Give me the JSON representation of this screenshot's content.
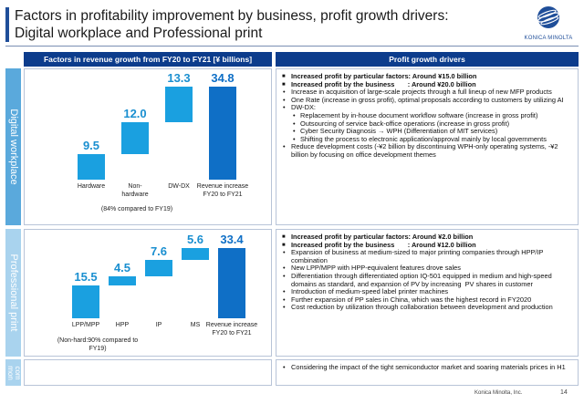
{
  "title": "Factors in profitability improvement by business, profit growth drivers:",
  "title2": "Digital workplace and Professional print",
  "logo_text": "KONICA MINOLTA",
  "headers": {
    "left": "Factors in revenue growth from FY20 to FY21 [¥ billions]",
    "right": "Profit growth drivers"
  },
  "side_labels": {
    "dw": "Digital workplace",
    "pp": "Professional print",
    "cm": "com mon"
  },
  "colors": {
    "bar": "#1aa0e0",
    "total_bar": "#0f6fc6",
    "header": "#0c3c8c"
  },
  "chart_data": [
    {
      "type": "bar",
      "categories": [
        "Hardware",
        "Non-hardware",
        "DW-DX",
        "Revenue increase FY20 to FY21"
      ],
      "category_labels": [
        "Hardware",
        "Non-\nhardware",
        "DW-DX",
        "Revenue increase\nFY20 to FY21"
      ],
      "values": [
        9.5,
        12.0,
        13.3,
        34.8
      ],
      "value_labels": [
        "9.5",
        "12.0",
        "13.3",
        "34.8"
      ],
      "note": "(84% compared to FY19)"
    },
    {
      "type": "bar",
      "categories": [
        "LPP/MPP",
        "HPP",
        "IP",
        "MS",
        "Revenue increase FY20 to FY21"
      ],
      "category_labels": [
        "LPP/MPP",
        "HPP",
        "IP",
        "MS",
        "Revenue increase\nFY20 to FY21"
      ],
      "values": [
        15.5,
        4.5,
        7.6,
        5.6,
        33.4
      ],
      "value_labels": [
        "15.5",
        "4.5",
        "7.6",
        "5.6",
        "33.4"
      ],
      "note": "(Non-hard:90% compared to FY19)"
    }
  ],
  "dw_drivers": [
    {
      "kind": "sq",
      "text": "Increased profit by particular factors: Around ¥15.0 billion"
    },
    {
      "kind": "sq",
      "text": "Increased profit by the business       : Around ¥20.0 billion"
    },
    {
      "kind": "dot",
      "text": "Increase in acquisition of large-scale projects through a full lineup of new MFP products"
    },
    {
      "kind": "dot",
      "text": "One Rate (increase in gross profit), optimal proposals according to customers by utilizing AI"
    },
    {
      "kind": "dot",
      "text": "DW-DX:"
    },
    {
      "kind": "sub",
      "text": "Replacement by in-house document workflow software (increase in gross profit)"
    },
    {
      "kind": "sub",
      "text": "Outsourcing of service back-office operations (increase in gross profit)"
    },
    {
      "kind": "sub",
      "text": "Cyber Security Diagnosis → WPH (Differentiation of MIT services)"
    },
    {
      "kind": "sub",
      "text": "Shifting the process to electronic application/approval mainly by local governments"
    },
    {
      "kind": "dot",
      "text": "Reduce development costs (-¥2 billion by discontinuing WPH-only operating systems, -¥2 billion by focusing on office development themes"
    }
  ],
  "pp_drivers": [
    {
      "kind": "sq",
      "text": "Increased profit by particular factors: Around ¥2.0 billion"
    },
    {
      "kind": "sq",
      "text": "Increased profit by the business       : Around ¥12.0 billion"
    },
    {
      "kind": "dot",
      "text": "Expansion of business at medium-sized to major printing companies through HPP/IP combination"
    },
    {
      "kind": "dot",
      "text": "New LPP/MPP with HPP-equivalent features drove sales"
    },
    {
      "kind": "dot",
      "text": "Differentiation through differentiated option IQ-501 equipped in medium and high-speed domains as standard, and expansion of PV by increasing  PV shares in customer"
    },
    {
      "kind": "dot",
      "text": "Introduction of medium-speed label printer machines"
    },
    {
      "kind": "dot",
      "text": "Further expansion of PP sales in China, which was the highest record in FY2020"
    },
    {
      "kind": "dot",
      "text": "Cost reduction by utilization through collaboration between development and production"
    }
  ],
  "cm_drivers": [
    {
      "kind": "dot",
      "text": "Considering the impact of the tight semiconductor market and soaring materials prices in H1"
    }
  ],
  "footer": {
    "copyright": "Konica Minolta, Inc.",
    "page": "14"
  }
}
